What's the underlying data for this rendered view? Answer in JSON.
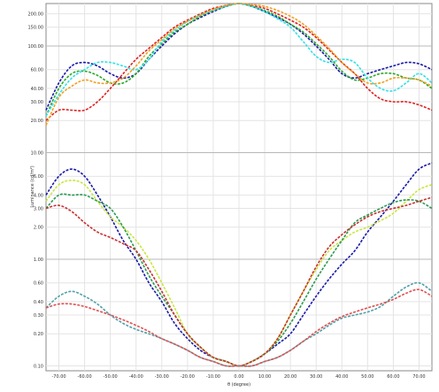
{
  "chart_data": {
    "type": "line",
    "title": "",
    "xlabel": "θ (degree)",
    "ylabel": "Luminance (cd/m²)",
    "x_ticks": [
      "-70.00",
      "-60.00",
      "-50.00",
      "-40.00",
      "-30.00",
      "-20.00",
      "-10.00",
      "0.00",
      "10.00",
      "20.00",
      "30.00",
      "40.00",
      "50.00",
      "60.00",
      "70.00"
    ],
    "xlim": [
      -75,
      75
    ],
    "y_scale": "log",
    "ylim": [
      0.09,
      250
    ],
    "y_ticks": [
      {
        "value": 200,
        "label": "200.00"
      },
      {
        "value": 150,
        "label": "150.00"
      },
      {
        "value": 100,
        "label": "100.00"
      },
      {
        "value": 60,
        "label": "60.00"
      },
      {
        "value": 40,
        "label": "40.00"
      },
      {
        "value": 30,
        "label": "30.00"
      },
      {
        "value": 20,
        "label": "20.00"
      },
      {
        "value": 10,
        "label": "10.00"
      },
      {
        "value": 6,
        "label": "6.00"
      },
      {
        "value": 4,
        "label": "4.00"
      },
      {
        "value": 3,
        "label": "3.00"
      },
      {
        "value": 2,
        "label": "2.00"
      },
      {
        "value": 1,
        "label": "1.00"
      },
      {
        "value": 0.6,
        "label": "0.60"
      },
      {
        "value": 0.4,
        "label": "0.40"
      },
      {
        "value": 0.3,
        "label": "0.30"
      },
      {
        "value": 0.2,
        "label": "0.20"
      },
      {
        "value": 0.1,
        "label": "0.10"
      }
    ],
    "reference_lines": [
      100,
      10,
      1
    ],
    "grid": true,
    "x": [
      -75,
      -70,
      -65,
      -60,
      -55,
      -50,
      -45,
      -40,
      -35,
      -30,
      -25,
      -20,
      -15,
      -10,
      -5,
      0,
      5,
      10,
      15,
      20,
      25,
      30,
      35,
      40,
      45,
      50,
      55,
      60,
      65,
      70,
      75
    ],
    "series": [
      {
        "color": "#1a1aa8",
        "values": [
          25,
          45,
          65,
          70,
          65,
          55,
          50,
          55,
          75,
          100,
          130,
          160,
          185,
          210,
          235,
          250,
          235,
          210,
          185,
          160,
          130,
          100,
          75,
          55,
          50,
          55,
          60,
          65,
          70,
          68,
          60
        ]
      },
      {
        "color": "#2aa82a",
        "values": [
          22,
          40,
          55,
          58,
          53,
          45,
          45,
          55,
          80,
          105,
          135,
          160,
          190,
          215,
          235,
          250,
          235,
          215,
          190,
          160,
          135,
          105,
          80,
          58,
          48,
          50,
          55,
          55,
          50,
          48,
          40
        ]
      },
      {
        "color": "#e02020",
        "values": [
          20,
          25,
          25,
          25,
          30,
          40,
          55,
          75,
          95,
          120,
          150,
          175,
          200,
          225,
          240,
          250,
          240,
          225,
          200,
          175,
          150,
          120,
          92,
          70,
          55,
          40,
          32,
          30,
          30,
          28,
          25
        ]
      },
      {
        "color": "#33e0e8",
        "values": [
          22,
          35,
          50,
          60,
          70,
          70,
          65,
          60,
          75,
          110,
          140,
          170,
          195,
          215,
          235,
          250,
          235,
          210,
          180,
          150,
          110,
          80,
          70,
          75,
          70,
          50,
          40,
          38,
          45,
          55,
          45
        ]
      },
      {
        "color": "#f0a020",
        "values": [
          18,
          33,
          42,
          48,
          45,
          45,
          50,
          65,
          90,
          115,
          145,
          170,
          195,
          220,
          240,
          250,
          245,
          235,
          215,
          190,
          160,
          125,
          95,
          70,
          55,
          45,
          45,
          50,
          50,
          48,
          42
        ]
      },
      {
        "color": "#1a1aa8",
        "values": [
          4,
          6,
          7,
          6,
          4,
          2.5,
          1.5,
          1,
          0.6,
          0.4,
          0.25,
          0.18,
          0.14,
          0.12,
          0.11,
          0.1,
          0.11,
          0.13,
          0.16,
          0.2,
          0.3,
          0.45,
          0.65,
          0.9,
          1.2,
          1.8,
          2.5,
          3.5,
          5,
          7,
          8
        ]
      },
      {
        "color": "#c8e640",
        "values": [
          3.5,
          5,
          5.5,
          5,
          3.5,
          2.5,
          2,
          1.5,
          1,
          0.6,
          0.35,
          0.2,
          0.15,
          0.12,
          0.11,
          0.1,
          0.11,
          0.13,
          0.18,
          0.3,
          0.5,
          0.8,
          1.2,
          1.5,
          1.8,
          2,
          2.3,
          2.7,
          3.5,
          4.5,
          5
        ]
      },
      {
        "color": "#2a9a50",
        "values": [
          3,
          4,
          4,
          4,
          3.5,
          3,
          2,
          1.2,
          0.7,
          0.45,
          0.3,
          0.2,
          0.15,
          0.12,
          0.11,
          0.1,
          0.11,
          0.13,
          0.17,
          0.25,
          0.4,
          0.65,
          1,
          1.5,
          2.2,
          2.6,
          3,
          3.4,
          3.6,
          3.5,
          3
        ]
      },
      {
        "color": "#c83030",
        "values": [
          3,
          3.2,
          2.8,
          2.2,
          1.8,
          1.6,
          1.4,
          1.2,
          0.8,
          0.5,
          0.3,
          0.2,
          0.15,
          0.12,
          0.11,
          0.1,
          0.11,
          0.13,
          0.18,
          0.3,
          0.5,
          0.85,
          1.3,
          1.7,
          2.1,
          2.5,
          2.8,
          3,
          3.2,
          3.5,
          3.8
        ]
      },
      {
        "color": "#50a0a8",
        "values": [
          0.35,
          0.45,
          0.5,
          0.45,
          0.38,
          0.3,
          0.25,
          0.22,
          0.2,
          0.18,
          0.16,
          0.14,
          0.12,
          0.11,
          0.1,
          0.1,
          0.1,
          0.11,
          0.12,
          0.14,
          0.17,
          0.2,
          0.24,
          0.28,
          0.3,
          0.32,
          0.36,
          0.45,
          0.55,
          0.6,
          0.5
        ]
      },
      {
        "color": "#e05050",
        "values": [
          0.35,
          0.38,
          0.38,
          0.36,
          0.33,
          0.3,
          0.27,
          0.24,
          0.21,
          0.18,
          0.16,
          0.14,
          0.12,
          0.11,
          0.1,
          0.1,
          0.1,
          0.11,
          0.12,
          0.14,
          0.17,
          0.21,
          0.25,
          0.29,
          0.32,
          0.35,
          0.38,
          0.42,
          0.48,
          0.52,
          0.45
        ]
      }
    ]
  }
}
